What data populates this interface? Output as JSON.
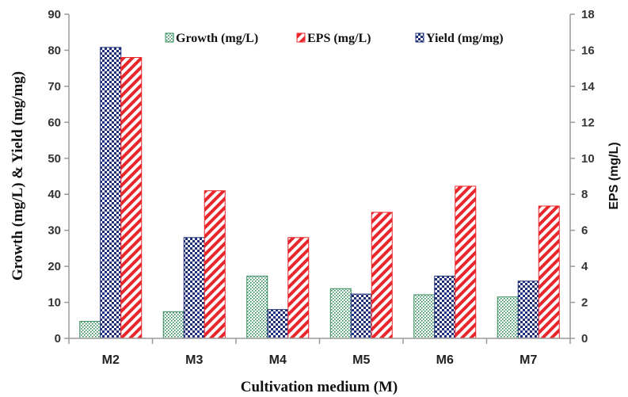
{
  "chart_data": {
    "type": "bar",
    "categories": [
      "M2",
      "M3",
      "M4",
      "M5",
      "M6",
      "M7"
    ],
    "series": [
      {
        "name": "Growth (mg/L)",
        "axis": "left",
        "values": [
          4.7,
          7.4,
          17.3,
          13.8,
          12.1,
          11.5
        ],
        "color": "#2e8b57",
        "pattern": "dots"
      },
      {
        "name": "Yield (mg/mg)",
        "axis": "left",
        "values": [
          80.8,
          28.0,
          8.0,
          12.3,
          17.3,
          15.9
        ],
        "color": "#1f2f7a",
        "pattern": "checker"
      },
      {
        "name": "EPS (mg/L)",
        "axis": "right",
        "values": [
          15.6,
          8.2,
          5.6,
          7.0,
          8.45,
          7.35
        ],
        "color": "#e8262b",
        "pattern": "diagonal"
      }
    ],
    "legend_order": [
      "Growth (mg/L)",
      "EPS (mg/L)",
      "Yield (mg/mg)"
    ],
    "xlabel": "Cultivation medium (M)",
    "ylabel": "Growth (mg/L) & Yield (mg/mg)",
    "y2label": "EPS (mg/L)",
    "ylim": [
      0,
      90
    ],
    "yticks": [
      "0",
      "10",
      "20",
      "30",
      "40",
      "50",
      "60",
      "70",
      "80",
      "90"
    ],
    "y2lim": [
      0,
      18
    ],
    "y2ticks": [
      "0",
      "2",
      "4",
      "6",
      "8",
      "10",
      "12",
      "14",
      "16",
      "18"
    ],
    "grid": false,
    "legend_position": "top-right"
  }
}
